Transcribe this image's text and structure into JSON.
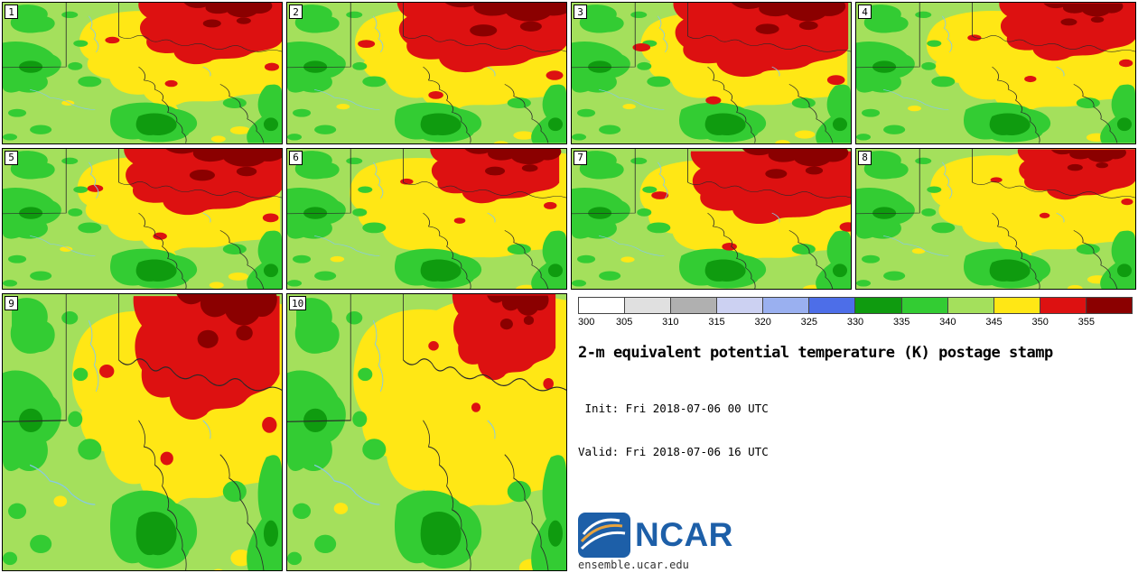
{
  "panels": [
    {
      "label": "1"
    },
    {
      "label": "2"
    },
    {
      "label": "3"
    },
    {
      "label": "4"
    },
    {
      "label": "5"
    },
    {
      "label": "6"
    },
    {
      "label": "7"
    },
    {
      "label": "8"
    },
    {
      "label": "9"
    },
    {
      "label": "10"
    }
  ],
  "colorbar": {
    "ticks": [
      "300",
      "305",
      "310",
      "315",
      "320",
      "325",
      "330",
      "335",
      "340",
      "345",
      "350",
      "355"
    ],
    "colors": [
      "#ffffff",
      "#e0e0e0",
      "#b0b0b0",
      "#ccd1f2",
      "#9ab0f0",
      "#4d6ee8",
      "#0f9b0f",
      "#33cc33",
      "#a4e05c",
      "#ffe715",
      "#dd1111",
      "#8b0000"
    ]
  },
  "legend": {
    "title": "2-m equivalent potential temperature (K) postage stamp",
    "init": " Init: Fri 2018-07-06 00 UTC",
    "valid": "Valid: Fri 2018-07-06 16 UTC",
    "logo_text": "NCAR",
    "logo_color": "#1d5fa8",
    "footer": "ensemble.ucar.edu"
  }
}
